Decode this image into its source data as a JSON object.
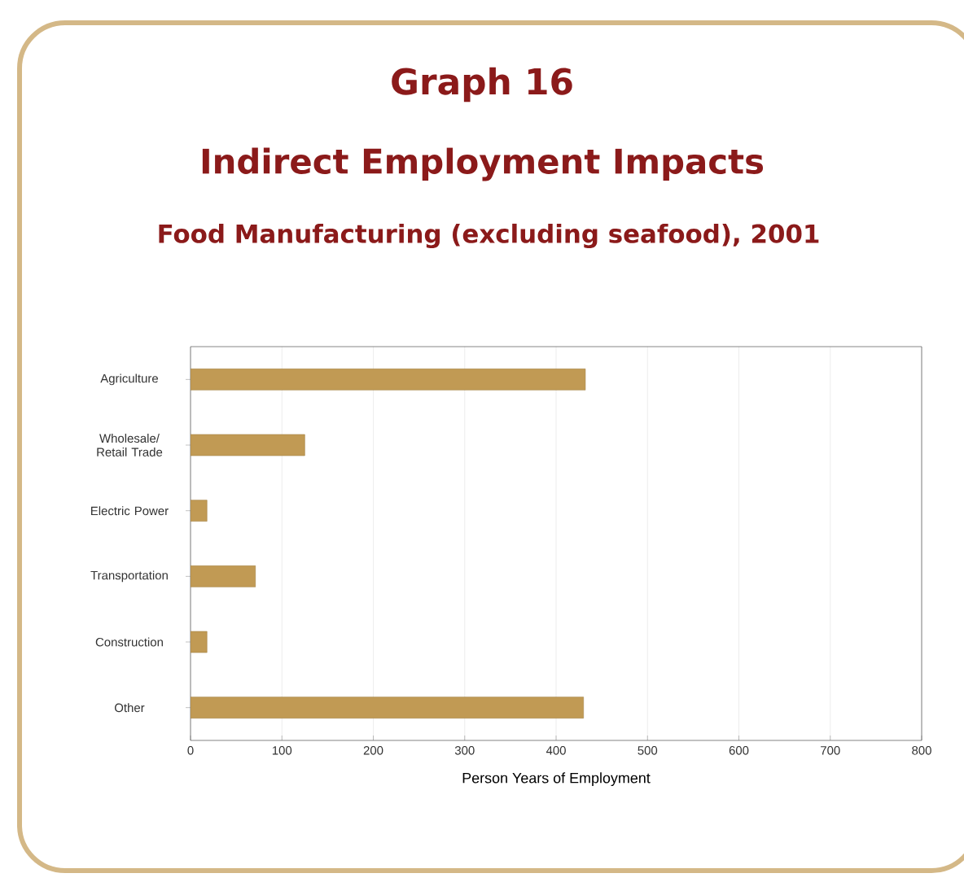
{
  "chart_data": {
    "type": "bar",
    "orientation": "horizontal",
    "title": "Graph 16",
    "subtitle": "Indirect Employment Impacts",
    "annotations": [
      "Food Manufacturing (excluding seafood), 2001"
    ],
    "categories": [
      "Agriculture",
      "Wholesale/ Retail Trade",
      "Electric Power",
      "Transportation",
      "Construction",
      "Other"
    ],
    "values": [
      432,
      125,
      18,
      71,
      18,
      430
    ],
    "color": "#c19a54",
    "xlabel": "Person Years of Employment",
    "xlim": [
      0,
      800
    ],
    "xticks": [
      0,
      100,
      200,
      300,
      400,
      500,
      600,
      700,
      800
    ],
    "grid": "x"
  }
}
